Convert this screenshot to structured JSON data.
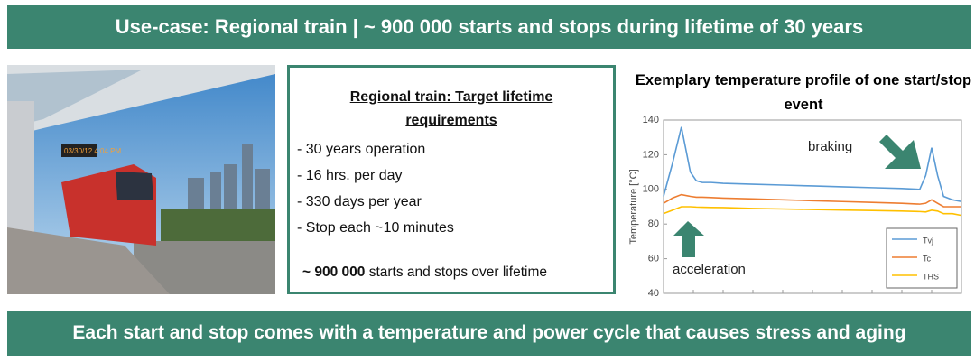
{
  "header": {
    "title": "Use-case: Regional train | ~ 900 000 starts and stops during lifetime of 30 years"
  },
  "requirements": {
    "title": "Regional train: Target lifetime requirements",
    "items": [
      "30 years operation",
      "16 hrs. per day",
      "330 days per year",
      "Stop each ~10 minutes"
    ],
    "footer": {
      "bold": "~ 900 000",
      "text": " starts and stops over lifetime"
    }
  },
  "chart_data": {
    "type": "line",
    "title": "Exemplary temperature profile of one start/stop event",
    "y_label": "Temperature [°C]",
    "x": [
      0,
      3,
      6,
      9,
      11,
      13,
      16,
      20,
      30,
      40,
      50,
      60,
      70,
      80,
      86,
      88,
      90,
      92,
      94,
      97,
      100
    ],
    "xlim": [
      0,
      100
    ],
    "ylim": [
      40,
      140
    ],
    "yticks": [
      40,
      60,
      80,
      100,
      120,
      140
    ],
    "legend": "lower right",
    "annotations": [
      "braking",
      "acceleration"
    ],
    "series": [
      {
        "name": "Tvj",
        "color": "#5b9bd5",
        "values": [
          96,
          115,
          136,
          110,
          105,
          104,
          104,
          103.5,
          103,
          102.5,
          102,
          101.5,
          101,
          100.5,
          100,
          108,
          124,
          108,
          96,
          94,
          93
        ]
      },
      {
        "name": "Tc",
        "color": "#ed7d31",
        "values": [
          92,
          95,
          97,
          96,
          95.5,
          95.5,
          95.3,
          95,
          94.5,
          94,
          93.5,
          93,
          92.5,
          92,
          91.5,
          92,
          94,
          92,
          90,
          90,
          90
        ]
      },
      {
        "name": "THS",
        "color": "#ffc000",
        "values": [
          86,
          88,
          90,
          90,
          89.8,
          89.7,
          89.6,
          89.5,
          89,
          88.7,
          88.4,
          88.1,
          87.8,
          87.5,
          87.2,
          87,
          88,
          87.5,
          86,
          86,
          85
        ]
      }
    ]
  },
  "footer": {
    "title": "Each start and stop comes with a temperature and power cycle that causes stress and aging"
  }
}
